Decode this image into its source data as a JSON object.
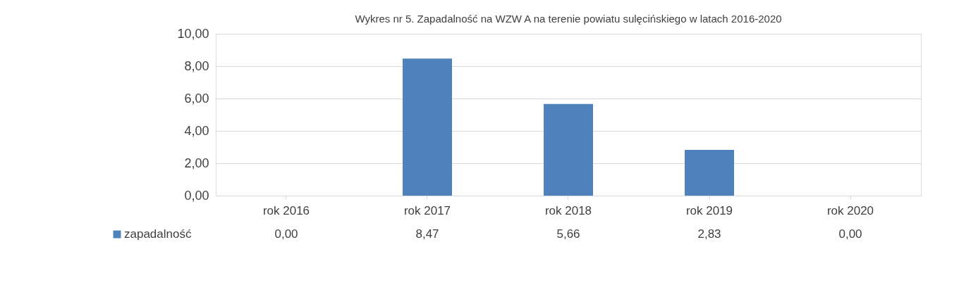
{
  "chart_data": {
    "type": "bar",
    "title": "Wykres nr 5. Zapadalność na WZW A na terenie powiatu sulęcińskiego w latach 2016-2020",
    "categories": [
      "rok 2016",
      "rok 2017",
      "rok 2018",
      "rok 2019",
      "rok 2020"
    ],
    "series": [
      {
        "name": "zapadalność",
        "color": "#4f81bd",
        "values": [
          0.0,
          8.47,
          5.66,
          2.83,
          0.0
        ],
        "value_labels": [
          "0,00",
          "8,47",
          "5,66",
          "2,83",
          "0,00"
        ]
      }
    ],
    "ylim": [
      0,
      10
    ],
    "yticks": [
      {
        "value": 0,
        "label": "0,00"
      },
      {
        "value": 2,
        "label": "2,00"
      },
      {
        "value": 4,
        "label": "4,00"
      },
      {
        "value": 6,
        "label": "6,00"
      },
      {
        "value": 8,
        "label": "8,00"
      },
      {
        "value": 10,
        "label": "10,00"
      }
    ],
    "grid": "y",
    "legend": "bottom"
  }
}
